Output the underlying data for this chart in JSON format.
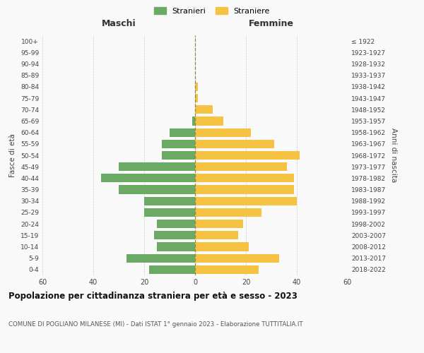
{
  "age_groups": [
    "0-4",
    "5-9",
    "10-14",
    "15-19",
    "20-24",
    "25-29",
    "30-34",
    "35-39",
    "40-44",
    "45-49",
    "50-54",
    "55-59",
    "60-64",
    "65-69",
    "70-74",
    "75-79",
    "80-84",
    "85-89",
    "90-94",
    "95-99",
    "100+"
  ],
  "birth_years": [
    "2018-2022",
    "2013-2017",
    "2008-2012",
    "2003-2007",
    "1998-2002",
    "1993-1997",
    "1988-1992",
    "1983-1987",
    "1978-1982",
    "1973-1977",
    "1968-1972",
    "1963-1967",
    "1958-1962",
    "1953-1957",
    "1948-1952",
    "1943-1947",
    "1938-1942",
    "1933-1937",
    "1928-1932",
    "1923-1927",
    "≤ 1922"
  ],
  "maschi": [
    18,
    27,
    15,
    16,
    15,
    20,
    20,
    30,
    37,
    30,
    13,
    13,
    10,
    1,
    0,
    0,
    0,
    0,
    0,
    0,
    0
  ],
  "femmine": [
    25,
    33,
    21,
    17,
    19,
    26,
    40,
    39,
    39,
    36,
    41,
    31,
    22,
    11,
    7,
    1,
    1,
    0,
    0,
    0,
    0
  ],
  "color_maschi": "#6aaa64",
  "color_femmine": "#f5c242",
  "background_color": "#f9f9f9",
  "grid_color": "#cccccc",
  "dashed_line_color": "#8b8b4e",
  "title": "Popolazione per cittadinanza straniera per età e sesso - 2023",
  "subtitle": "COMUNE DI POGLIANO MILANESE (MI) - Dati ISTAT 1° gennaio 2023 - Elaborazione TUTTITALIA.IT",
  "xlabel_left": "Maschi",
  "xlabel_right": "Femmine",
  "ylabel_left": "Fasce di età",
  "ylabel_right": "Anni di nascita",
  "legend_maschi": "Stranieri",
  "legend_femmine": "Straniere",
  "xlim": 60,
  "figsize": [
    6.0,
    5.0
  ],
  "dpi": 100
}
